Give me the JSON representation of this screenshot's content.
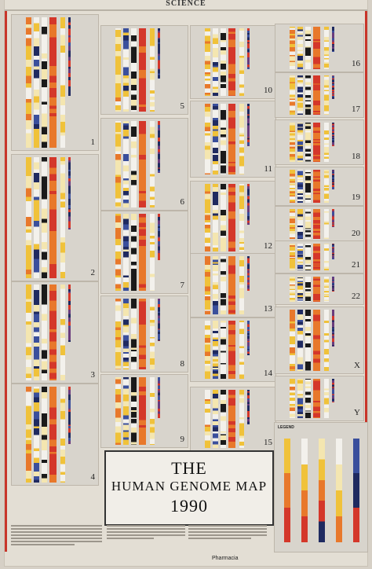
{
  "masthead": "SCIENCE",
  "title": {
    "line1": "THE",
    "line2": "HUMAN GENOME MAP",
    "line3": "1990"
  },
  "legend_title": "LEGEND",
  "sponsor": "Pharmacia",
  "chromosomes": [
    "1",
    "2",
    "3",
    "4",
    "5",
    "6",
    "7",
    "8",
    "9",
    "10",
    "11",
    "12",
    "13",
    "14",
    "15",
    "16",
    "17",
    "18",
    "19",
    "20",
    "21",
    "22",
    "X",
    "Y"
  ],
  "colors": {
    "red": "#d4372a",
    "orange": "#e8782b",
    "yellow": "#f0c23a",
    "pale": "#f4e6b0",
    "blue": "#3a4f9c",
    "navy": "#1f2a60",
    "black": "#1a1a1a",
    "white": "#f3f1ec",
    "purple": "#6a3b7c",
    "accent": "#c8352a"
  }
}
